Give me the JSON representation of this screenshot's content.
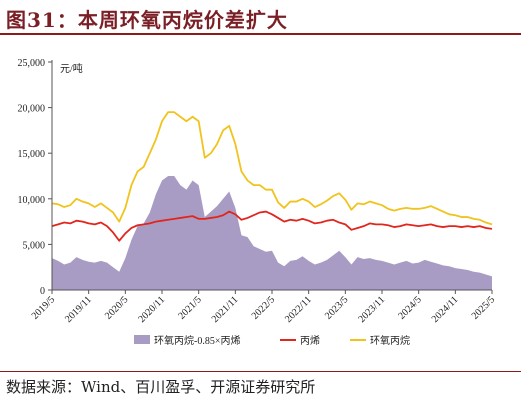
{
  "header": {
    "title": "图31：本周环氧丙烷价差扩大"
  },
  "footer": {
    "source": "数据来源：Wind、百川盈孚、开源证券研究所"
  },
  "chart_data": {
    "type": "line",
    "title": "本周环氧丙烷价差扩大",
    "ylabel": "元/吨",
    "ylim": [
      0,
      25000
    ],
    "yticks": [
      "0",
      "5,000",
      "10,000",
      "15,000",
      "20,000",
      "25,000"
    ],
    "ytick_values": [
      0,
      5000,
      10000,
      15000,
      20000,
      25000
    ],
    "xticks": [
      "2019/5",
      "2019/11",
      "2020/5",
      "2020/11",
      "2021/5",
      "2021/11",
      "2022/5",
      "2022/11",
      "2023/5",
      "2023/11",
      "2024/5",
      "2024/11",
      "2025/5"
    ],
    "x": [
      "2019/5",
      "2019/6",
      "2019/7",
      "2019/8",
      "2019/9",
      "2019/10",
      "2019/11",
      "2019/12",
      "2020/1",
      "2020/2",
      "2020/3",
      "2020/4",
      "2020/5",
      "2020/6",
      "2020/7",
      "2020/8",
      "2020/9",
      "2020/10",
      "2020/11",
      "2020/12",
      "2021/1",
      "2021/2",
      "2021/3",
      "2021/4",
      "2021/5",
      "2021/6",
      "2021/7",
      "2021/8",
      "2021/9",
      "2021/10",
      "2021/11",
      "2021/12",
      "2022/1",
      "2022/2",
      "2022/3",
      "2022/4",
      "2022/5",
      "2022/6",
      "2022/7",
      "2022/8",
      "2022/9",
      "2022/10",
      "2022/11",
      "2022/12",
      "2023/1",
      "2023/2",
      "2023/3",
      "2023/4",
      "2023/5",
      "2023/6",
      "2023/7",
      "2023/8",
      "2023/9",
      "2023/10",
      "2023/11",
      "2023/12",
      "2024/1",
      "2024/2",
      "2024/3",
      "2024/4",
      "2024/5",
      "2024/6",
      "2024/7",
      "2024/8",
      "2024/9",
      "2024/10",
      "2024/11",
      "2024/12",
      "2025/1",
      "2025/2",
      "2025/3",
      "2025/4",
      "2025/5"
    ],
    "legend_position": "bottom",
    "series": [
      {
        "name": "环氧丙烷-0.85×丙烯",
        "style": "area",
        "color": "#a99cc4",
        "values": [
          3500,
          3200,
          2800,
          3000,
          3600,
          3300,
          3100,
          3000,
          3200,
          3000,
          2500,
          2000,
          3500,
          5500,
          7000,
          7300,
          8500,
          10500,
          12000,
          12500,
          12500,
          11500,
          11000,
          12000,
          11500,
          8000,
          8600,
          9200,
          10000,
          10800,
          9000,
          6000,
          5800,
          4800,
          4500,
          4200,
          4300,
          3000,
          2600,
          3200,
          3300,
          3700,
          3200,
          2800,
          3000,
          3300,
          3800,
          4300,
          3600,
          2800,
          3600,
          3400,
          3500,
          3300,
          3200,
          3000,
          2800,
          3000,
          3200,
          2900,
          3000,
          3300,
          3100,
          2900,
          2700,
          2600,
          2400,
          2300,
          2200,
          2000,
          1900,
          1700,
          1500
        ]
      },
      {
        "name": "丙烯",
        "style": "line",
        "color": "#e0261d",
        "values": [
          7000,
          7200,
          7400,
          7300,
          7600,
          7500,
          7300,
          7200,
          7400,
          7000,
          6300,
          5400,
          6200,
          6800,
          7100,
          7200,
          7300,
          7500,
          7600,
          7700,
          7800,
          7900,
          8000,
          8100,
          7800,
          7800,
          7900,
          8000,
          8200,
          8600,
          8300,
          7700,
          7900,
          8200,
          8500,
          8600,
          8300,
          7900,
          7500,
          7700,
          7600,
          7800,
          7600,
          7300,
          7400,
          7600,
          7700,
          7400,
          7200,
          6600,
          6800,
          7000,
          7300,
          7200,
          7200,
          7100,
          6900,
          7000,
          7200,
          7100,
          7000,
          7100,
          7200,
          7000,
          6900,
          7000,
          7000,
          6900,
          7000,
          6900,
          7000,
          6800,
          6700
        ]
      },
      {
        "name": "环氧丙烷",
        "style": "line",
        "color": "#f1c31d",
        "values": [
          9500,
          9400,
          9100,
          9300,
          10000,
          9700,
          9500,
          9100,
          9500,
          9000,
          8500,
          7500,
          9000,
          11500,
          13000,
          13500,
          15000,
          16500,
          18500,
          19500,
          19500,
          19000,
          18500,
          19000,
          18500,
          14500,
          15000,
          16000,
          17500,
          18000,
          16000,
          13000,
          12000,
          11500,
          11500,
          11000,
          11000,
          9600,
          9000,
          9700,
          9700,
          10000,
          9700,
          9100,
          9400,
          9800,
          10300,
          10600,
          9900,
          8800,
          9500,
          9400,
          9700,
          9500,
          9300,
          8900,
          8700,
          8900,
          9000,
          8900,
          8900,
          9000,
          9200,
          8900,
          8600,
          8300,
          8200,
          8000,
          8000,
          7800,
          7700,
          7400,
          7200
        ]
      }
    ]
  }
}
